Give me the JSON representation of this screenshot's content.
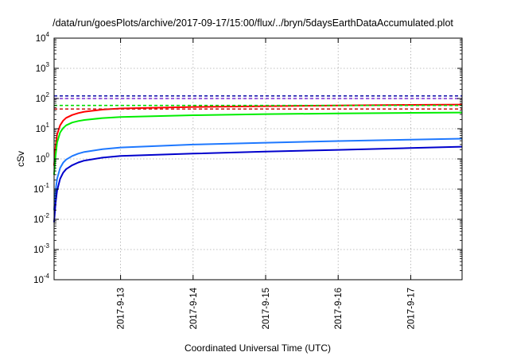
{
  "chart_data": {
    "type": "line",
    "title": "/data/run/goesPlots/archive/2017-09-17/15:00/flux/../bryn/5daysEarthDataAccumulated.plot",
    "xlabel": "Coordinated Universal Time (UTC)",
    "ylabel": "cSv",
    "x_range": [
      "2017-09-12 02:00",
      "2017-09-17 17:00"
    ],
    "x_ticks": [
      "2017-9-13",
      "2017-9-14",
      "2017-9-15",
      "2017-9-16",
      "2017-9-17"
    ],
    "y_scale": "log",
    "ylim": [
      0.0001,
      10000
    ],
    "y_ticks": [
      {
        "base": "10",
        "exp": "-4",
        "value": 0.0001
      },
      {
        "base": "10",
        "exp": "-3",
        "value": 0.001
      },
      {
        "base": "10",
        "exp": "-2",
        "value": 0.01
      },
      {
        "base": "10",
        "exp": "-1",
        "value": 0.1
      },
      {
        "base": "10",
        "exp": "0",
        "value": 1
      },
      {
        "base": "10",
        "exp": "1",
        "value": 10
      },
      {
        "base": "10",
        "exp": "2",
        "value": 100
      },
      {
        "base": "10",
        "exp": "3",
        "value": 1000
      },
      {
        "base": "10",
        "exp": "4",
        "value": 10000
      }
    ],
    "grid": true,
    "series": [
      {
        "color": "#ff0000",
        "style": "solid",
        "x": [
          "2017-09-12 02:00",
          "2017-09-12 02:30",
          "2017-09-12 03:00",
          "2017-09-12 04:00",
          "2017-09-12 05:00",
          "2017-09-12 06:00",
          "2017-09-12 08:00",
          "2017-09-12 10:00",
          "2017-09-12 12:00",
          "2017-09-12 18:00",
          "2017-09-13 00:00",
          "2017-09-14 00:00",
          "2017-09-15 00:00",
          "2017-09-16 00:00",
          "2017-09-17 00:00",
          "2017-09-17 17:00"
        ],
        "values": [
          0.6,
          2.6,
          6.5,
          13,
          18.5,
          23,
          28.5,
          33,
          36.5,
          43,
          47,
          52.5,
          56,
          59,
          61.5,
          63
        ]
      },
      {
        "color": "#00ee00",
        "style": "solid",
        "x": [
          "2017-09-12 02:00",
          "2017-09-12 02:30",
          "2017-09-12 03:00",
          "2017-09-12 04:00",
          "2017-09-12 05:00",
          "2017-09-12 06:00",
          "2017-09-12 08:00",
          "2017-09-12 10:00",
          "2017-09-12 12:00",
          "2017-09-12 18:00",
          "2017-09-13 00:00",
          "2017-09-14 00:00",
          "2017-09-15 00:00",
          "2017-09-16 00:00",
          "2017-09-17 00:00",
          "2017-09-17 17:00"
        ],
        "values": [
          0.3,
          1.3,
          3.5,
          7.5,
          10.5,
          13,
          16,
          18,
          19.5,
          22.5,
          24.5,
          28,
          30.5,
          32,
          33.5,
          34.5
        ]
      },
      {
        "color": "#1e78ff",
        "style": "solid",
        "x": [
          "2017-09-12 02:00",
          "2017-09-12 02:30",
          "2017-09-12 03:00",
          "2017-09-12 04:00",
          "2017-09-12 05:00",
          "2017-09-12 06:00",
          "2017-09-12 08:00",
          "2017-09-12 10:00",
          "2017-09-12 12:00",
          "2017-09-12 18:00",
          "2017-09-13 00:00",
          "2017-09-14 00:00",
          "2017-09-15 00:00",
          "2017-09-16 00:00",
          "2017-09-17 00:00",
          "2017-09-17 17:00"
        ],
        "values": [
          0.02,
          0.09,
          0.22,
          0.5,
          0.75,
          0.95,
          1.25,
          1.5,
          1.7,
          2.1,
          2.4,
          3.0,
          3.45,
          3.9,
          4.35,
          4.7
        ]
      },
      {
        "color": "#0000cc",
        "style": "solid",
        "x": [
          "2017-09-12 02:00",
          "2017-09-12 02:30",
          "2017-09-12 03:00",
          "2017-09-12 04:00",
          "2017-09-12 05:00",
          "2017-09-12 06:00",
          "2017-09-12 08:00",
          "2017-09-12 10:00",
          "2017-09-12 12:00",
          "2017-09-12 18:00",
          "2017-09-13 00:00",
          "2017-09-14 00:00",
          "2017-09-15 00:00",
          "2017-09-16 00:00",
          "2017-09-17 00:00",
          "2017-09-17 17:00"
        ],
        "values": [
          0.008,
          0.035,
          0.09,
          0.22,
          0.35,
          0.46,
          0.62,
          0.76,
          0.88,
          1.1,
          1.25,
          1.5,
          1.75,
          2.0,
          2.3,
          2.55
        ]
      },
      {
        "color": "#cc2222",
        "style": "dashed",
        "x": [
          "2017-09-12 02:00",
          "2017-09-17 17:00"
        ],
        "values": [
          45,
          45
        ]
      },
      {
        "color": "#00dd00",
        "style": "dashed",
        "x": [
          "2017-09-12 02:00",
          "2017-09-17 17:00"
        ],
        "values": [
          59,
          59
        ]
      },
      {
        "color": "#7b2fd0",
        "style": "dashed",
        "x": [
          "2017-09-12 02:00",
          "2017-09-17 17:00"
        ],
        "values": [
          100,
          100
        ]
      },
      {
        "color": "#1010aa",
        "style": "dashed",
        "x": [
          "2017-09-12 02:00",
          "2017-09-17 17:00"
        ],
        "values": [
          122,
          122
        ]
      }
    ]
  }
}
